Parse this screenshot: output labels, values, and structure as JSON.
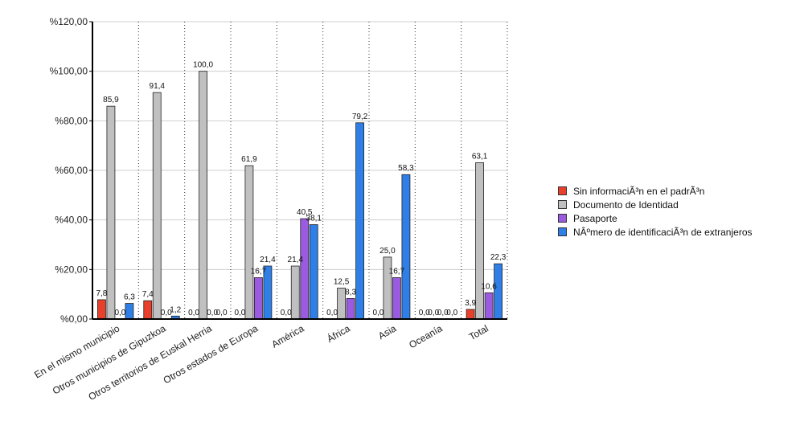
{
  "chart_data": {
    "type": "bar",
    "categories": [
      "En el mismo municipio",
      "Otros municipios de Gipuzkoa",
      "Otros territorios de Euskal Herria",
      "Otros estados de Europa",
      "América",
      "África",
      "Asia",
      "Oceanía",
      "Total"
    ],
    "series": [
      {
        "name": "Sin informaciÃ³n en el padrÃ³n",
        "color": "#e8402a",
        "values": [
          7.8,
          7.4,
          0.0,
          0.0,
          0.0,
          0.0,
          0.0,
          0.0,
          3.9
        ],
        "labels": [
          "7,8",
          "7,4",
          "0,0",
          "0,0",
          "0,0",
          "0,0",
          "0,0",
          "0,0",
          "3,9"
        ]
      },
      {
        "name": "Documento de Identidad",
        "color": "#c0c0c0",
        "values": [
          85.9,
          91.4,
          100.0,
          61.9,
          21.4,
          12.5,
          25.0,
          0.0,
          63.1
        ],
        "labels": [
          "85,9",
          "91,4",
          "100,0",
          "61,9",
          "21,4",
          "12,5",
          "25,0",
          "0,0",
          "63,1"
        ]
      },
      {
        "name": "Pasaporte",
        "color": "#9a5be0",
        "values": [
          0.0,
          0.0,
          0.0,
          16.7,
          40.5,
          8.3,
          16.7,
          0.0,
          10.6
        ],
        "labels": [
          "0,0",
          "0,0",
          "0,0",
          "16,7",
          "40,5",
          "8,3",
          "16,7",
          "0,0",
          "10,6"
        ]
      },
      {
        "name": "NÂºmero de identificaciÃ³n de extranjeros",
        "color": "#2f7fe6",
        "values": [
          6.3,
          1.2,
          0.0,
          21.4,
          38.1,
          79.2,
          58.3,
          0.0,
          22.3
        ],
        "labels": [
          "6,3",
          "1,2",
          "0,0",
          "21,4",
          "38,1",
          "79,2",
          "58,3",
          "0,0",
          "22,3"
        ]
      }
    ],
    "yticks": [
      "%0,00",
      "%20,00",
      "%40,00",
      "%60,00",
      "%80,00",
      "%100,00",
      "%120,00"
    ],
    "ylim": [
      0,
      120
    ],
    "grid": true,
    "legend_position": "right"
  }
}
